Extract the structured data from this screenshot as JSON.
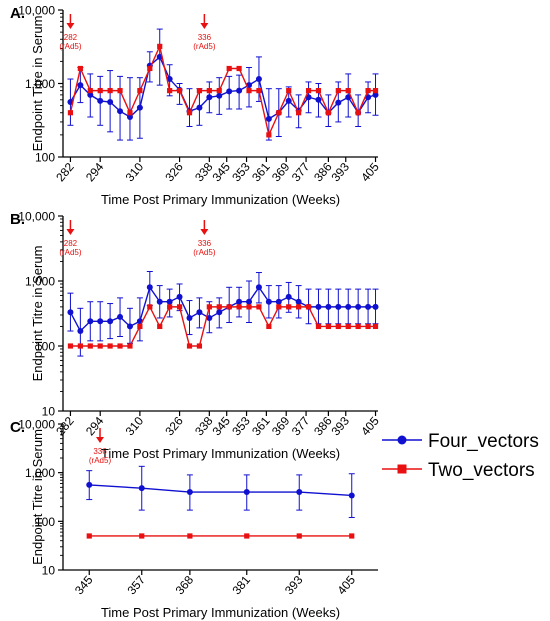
{
  "colors": {
    "four": "#1010d0",
    "two": "#e81010",
    "annot": "#e81010",
    "axis": "#000000"
  },
  "legend": {
    "entries": [
      {
        "label": "Four_vectors",
        "color": "#1010d0",
        "marker": "circle"
      },
      {
        "label": "Two_vectors",
        "color": "#e81010",
        "marker": "square"
      }
    ]
  },
  "chart_data": [
    {
      "panel_label": "A.",
      "type": "line",
      "xlabel": "Time Post Primary Immunization (Weeks)",
      "ylabel": "Endpoint Titre in Serum",
      "yscale": "log",
      "ylim": [
        100,
        10000
      ],
      "yticks": [
        "100",
        "1,000",
        "10,000"
      ],
      "xlim": [
        279,
        406
      ],
      "x_ticks": [
        282,
        294,
        310,
        326,
        338,
        345,
        353,
        361,
        369,
        377,
        386,
        393,
        405
      ],
      "annotations": [
        {
          "x": 282,
          "lines": [
            "282",
            "(rAd5)"
          ]
        },
        {
          "x": 336,
          "lines": [
            "336",
            "(rAd5)"
          ]
        }
      ],
      "series": [
        {
          "name": "Four_vectors",
          "x": [
            282,
            286,
            290,
            294,
            298,
            302,
            306,
            310,
            314,
            318,
            322,
            326,
            330,
            334,
            338,
            342,
            346,
            350,
            354,
            358,
            362,
            366,
            370,
            374,
            378,
            382,
            386,
            390,
            394,
            398,
            402,
            405
          ],
          "y": [
            560,
            950,
            700,
            580,
            560,
            420,
            350,
            470,
            1750,
            2300,
            1150,
            820,
            420,
            470,
            650,
            680,
            780,
            800,
            950,
            1150,
            330,
            400,
            580,
            430,
            650,
            600,
            400,
            550,
            650,
            400,
            650,
            700
          ],
          "err_high": [
            1150,
            1650,
            1350,
            1250,
            1500,
            1250,
            1200,
            1200,
            2700,
            5500,
            1800,
            1000,
            850,
            850,
            1050,
            1200,
            1250,
            1300,
            1650,
            2300,
            850,
            850,
            900,
            700,
            1050,
            1000,
            700,
            1050,
            1350,
            700,
            1050,
            1350
          ],
          "err_low": [
            270,
            550,
            350,
            270,
            220,
            170,
            170,
            180,
            1050,
            950,
            680,
            520,
            260,
            270,
            400,
            380,
            450,
            450,
            480,
            570,
            170,
            190,
            350,
            250,
            400,
            350,
            260,
            300,
            350,
            260,
            400,
            370
          ]
        },
        {
          "name": "Two_vectors",
          "x": [
            282,
            286,
            290,
            294,
            298,
            302,
            306,
            310,
            314,
            318,
            322,
            326,
            330,
            334,
            338,
            342,
            346,
            350,
            354,
            358,
            362,
            366,
            370,
            374,
            378,
            382,
            386,
            390,
            394,
            398,
            402,
            405
          ],
          "y": [
            400,
            1600,
            800,
            800,
            800,
            800,
            400,
            800,
            1600,
            3200,
            800,
            800,
            400,
            800,
            800,
            800,
            1600,
            1600,
            800,
            800,
            200,
            400,
            800,
            400,
            800,
            800,
            400,
            800,
            800,
            400,
            800,
            800
          ]
        }
      ]
    },
    {
      "panel_label": "B.",
      "type": "line",
      "xlabel": "Time Post Primary Immunization (Weeks)",
      "ylabel": "Endpoint Titre in Serum",
      "yscale": "log",
      "ylim": [
        10,
        10000
      ],
      "yticks": [
        "10",
        "100",
        "1,000",
        "10,000"
      ],
      "xlim": [
        279,
        406
      ],
      "x_ticks": [
        282,
        294,
        310,
        326,
        338,
        345,
        353,
        361,
        369,
        377,
        386,
        393,
        405
      ],
      "annotations": [
        {
          "x": 282,
          "lines": [
            "282",
            "(rAd5)"
          ]
        },
        {
          "x": 336,
          "lines": [
            "336",
            "(rAd5)"
          ]
        }
      ],
      "series": [
        {
          "name": "Four_vectors",
          "x": [
            282,
            286,
            290,
            294,
            298,
            302,
            306,
            310,
            314,
            318,
            322,
            326,
            330,
            334,
            338,
            342,
            346,
            350,
            354,
            358,
            362,
            366,
            370,
            374,
            378,
            382,
            386,
            390,
            394,
            398,
            402,
            405
          ],
          "y": [
            330,
            170,
            240,
            240,
            240,
            280,
            200,
            240,
            800,
            480,
            480,
            570,
            270,
            330,
            270,
            330,
            400,
            480,
            480,
            800,
            480,
            480,
            570,
            480,
            400,
            400,
            400,
            400,
            400,
            400,
            400,
            400
          ],
          "err_high": [
            650,
            380,
            480,
            480,
            450,
            550,
            380,
            550,
            1400,
            850,
            750,
            900,
            500,
            550,
            480,
            550,
            800,
            800,
            1000,
            1350,
            850,
            850,
            950,
            850,
            750,
            750,
            750,
            750,
            750,
            750,
            750,
            750
          ],
          "err_low": [
            170,
            70,
            120,
            120,
            130,
            140,
            110,
            120,
            420,
            270,
            280,
            350,
            150,
            190,
            160,
            190,
            230,
            280,
            230,
            460,
            270,
            270,
            330,
            270,
            220,
            220,
            220,
            220,
            220,
            220,
            220,
            220
          ]
        },
        {
          "name": "Two_vectors",
          "x": [
            282,
            286,
            290,
            294,
            298,
            302,
            306,
            310,
            314,
            318,
            322,
            326,
            330,
            334,
            338,
            342,
            346,
            350,
            354,
            358,
            362,
            366,
            370,
            374,
            378,
            382,
            386,
            390,
            394,
            398,
            402,
            405
          ],
          "y": [
            100,
            100,
            100,
            100,
            100,
            100,
            100,
            200,
            400,
            200,
            400,
            400,
            100,
            100,
            400,
            400,
            400,
            400,
            400,
            400,
            200,
            400,
            400,
            400,
            400,
            200,
            200,
            200,
            200,
            200,
            200,
            200
          ]
        }
      ]
    },
    {
      "panel_label": "C.",
      "type": "line",
      "xlabel": "Time Post Primary Immunization (Weeks)",
      "ylabel": "Endpoint Titre in Serum",
      "yscale": "log",
      "ylim": [
        10,
        10000
      ],
      "yticks": [
        "10",
        "100",
        "1,000",
        "10,000"
      ],
      "xlim": [
        339,
        411
      ],
      "x_ticks": [
        345,
        357,
        368,
        381,
        393,
        405
      ],
      "annotations": [
        {
          "x": 336,
          "lines": [
            "336",
            "(rAd5)"
          ]
        }
      ],
      "series": [
        {
          "name": "Four_vectors",
          "x": [
            345,
            357,
            368,
            381,
            393,
            405
          ],
          "y": [
            560,
            480,
            400,
            400,
            400,
            340
          ],
          "err_high": [
            1100,
            1350,
            900,
            900,
            900,
            950
          ],
          "err_low": [
            280,
            170,
            170,
            170,
            170,
            120
          ]
        },
        {
          "name": "Two_vectors",
          "x": [
            345,
            357,
            368,
            381,
            393,
            405
          ],
          "y": [
            50,
            50,
            50,
            50,
            50,
            50
          ]
        }
      ]
    }
  ]
}
